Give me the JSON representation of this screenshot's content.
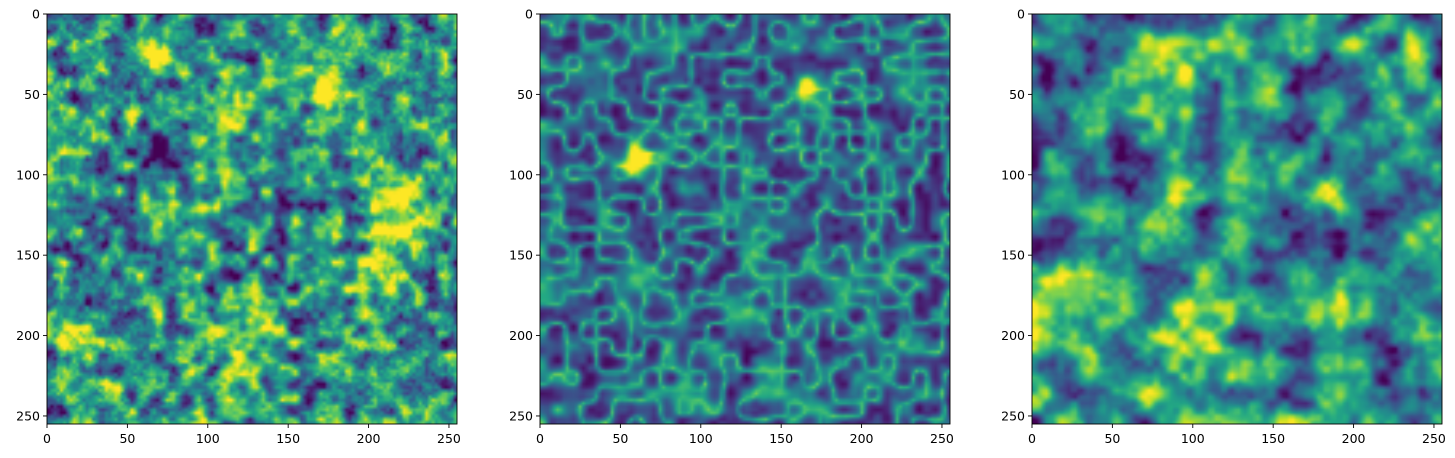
{
  "chart_data": [
    {
      "type": "heatmap",
      "colormap": "viridis",
      "grid": false,
      "xlim": [
        0,
        255
      ],
      "ylim": [
        255,
        0
      ],
      "xticks": [
        0,
        50,
        100,
        150,
        200,
        250
      ],
      "yticks": [
        0,
        50,
        100,
        150,
        200,
        250
      ],
      "xtick_labels": [
        "0",
        "50",
        "100",
        "150",
        "200",
        "250"
      ],
      "ytick_labels": [
        "0",
        "50",
        "100",
        "150",
        "200",
        "250"
      ],
      "texture": "smooth-blobs",
      "noise_scale": 7.5,
      "seed": 11,
      "background_level": 0.5,
      "hotspots": [
        {
          "x": 68,
          "y": 20,
          "r": 9,
          "amp": 0.45
        },
        {
          "x": 170,
          "y": 46,
          "r": 7,
          "amp": 0.55
        },
        {
          "x": 70,
          "y": 85,
          "r": 10,
          "amp": -0.55
        },
        {
          "x": 225,
          "y": 122,
          "r": 16,
          "amp": 0.4
        },
        {
          "x": 120,
          "y": 215,
          "r": 10,
          "amp": 0.3
        },
        {
          "x": 100,
          "y": 60,
          "r": 10,
          "amp": 0.3
        },
        {
          "x": 210,
          "y": 170,
          "r": 14,
          "amp": 0.25
        },
        {
          "x": 15,
          "y": 205,
          "r": 10,
          "amp": 0.25
        },
        {
          "x": 185,
          "y": 115,
          "r": 8,
          "amp": -0.3
        }
      ]
    },
    {
      "type": "heatmap",
      "colormap": "viridis",
      "grid": false,
      "xlim": [
        0,
        255
      ],
      "ylim": [
        255,
        0
      ],
      "xticks": [
        0,
        50,
        100,
        150,
        200,
        250
      ],
      "yticks": [
        0,
        50,
        100,
        150,
        200,
        250
      ],
      "xtick_labels": [
        "0",
        "50",
        "100",
        "150",
        "200",
        "250"
      ],
      "ytick_labels": [
        "0",
        "50",
        "100",
        "150",
        "200",
        "250"
      ],
      "texture": "ridges",
      "noise_scale": 5,
      "seed": 23,
      "background_level": 0.15,
      "hotspots": [
        {
          "x": 165,
          "y": 43,
          "r": 5,
          "amp": 0.85
        },
        {
          "x": 60,
          "y": 90,
          "r": 6,
          "amp": 0.8
        },
        {
          "x": 130,
          "y": 290,
          "r": 1,
          "amp": 0.0
        }
      ]
    },
    {
      "type": "heatmap",
      "colormap": "viridis",
      "grid": false,
      "xlim": [
        0,
        255
      ],
      "ylim": [
        255,
        0
      ],
      "xticks": [
        0,
        50,
        100,
        150,
        200,
        250
      ],
      "yticks": [
        0,
        50,
        100,
        150,
        200,
        250
      ],
      "xtick_labels": [
        "0",
        "50",
        "100",
        "150",
        "200",
        "250"
      ],
      "ytick_labels": [
        "0",
        "50",
        "100",
        "150",
        "200",
        "250"
      ],
      "texture": "fine-blobs",
      "noise_scale": 3.5,
      "seed": 37,
      "background_level": 0.5,
      "hotspots": [
        {
          "x": 158,
          "y": 40,
          "r": 4,
          "amp": 0.5
        },
        {
          "x": 163,
          "y": 44,
          "r": 4,
          "amp": -0.5
        },
        {
          "x": 220,
          "y": 93,
          "r": 5,
          "amp": 0.45
        },
        {
          "x": 190,
          "y": 115,
          "r": 5,
          "amp": 0.4
        },
        {
          "x": 190,
          "y": 135,
          "r": 4,
          "amp": -0.35
        },
        {
          "x": 150,
          "y": 145,
          "r": 5,
          "amp": 0.35
        }
      ]
    }
  ]
}
